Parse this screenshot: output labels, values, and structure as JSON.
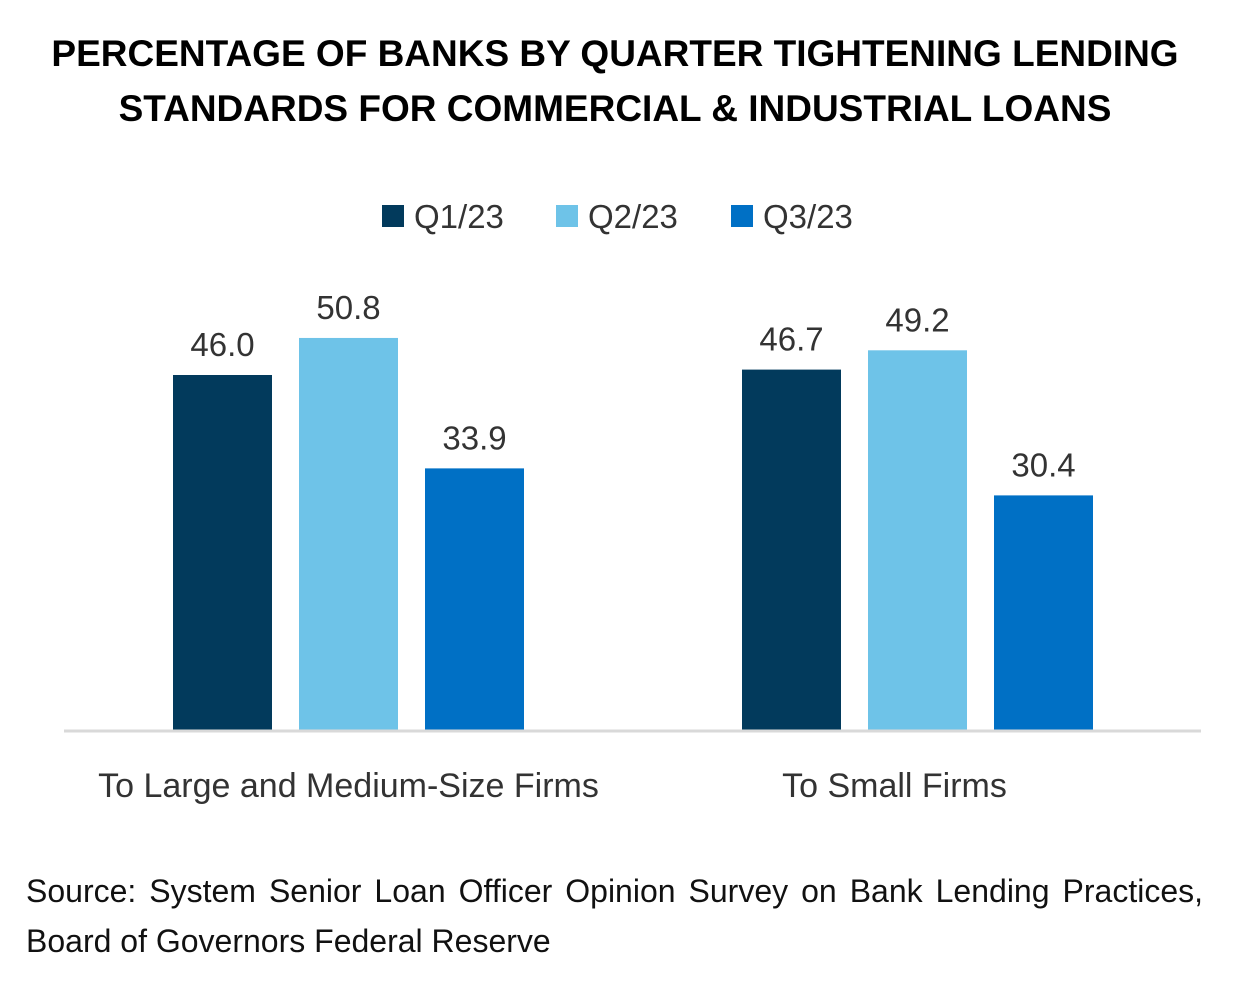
{
  "chart_data": {
    "type": "bar",
    "title": [
      "PERCENTAGE OF BANKS BY QUARTER TIGHTENING LENDING",
      "STANDARDS FOR COMMERCIAL & INDUSTRIAL LOANS"
    ],
    "categories": [
      "To Large and Medium-Size Firms",
      "To Small Firms"
    ],
    "series": [
      {
        "name": "Q1/23",
        "color": "#023A5C",
        "values": [
          46.0,
          46.7
        ]
      },
      {
        "name": "Q2/23",
        "color": "#6EC3E8",
        "values": [
          50.8,
          49.2
        ]
      },
      {
        "name": "Q3/23",
        "color": "#0070C5",
        "values": [
          33.9,
          30.4
        ]
      }
    ],
    "xlabel": "",
    "ylabel": "",
    "ylim": [
      0,
      56
    ],
    "grid": false,
    "legend_position": "top",
    "data_labels": true
  },
  "source": "Source: System Senior Loan Officer Opinion Survey on Bank Lending Practices, Board of Governors Federal Reserve"
}
